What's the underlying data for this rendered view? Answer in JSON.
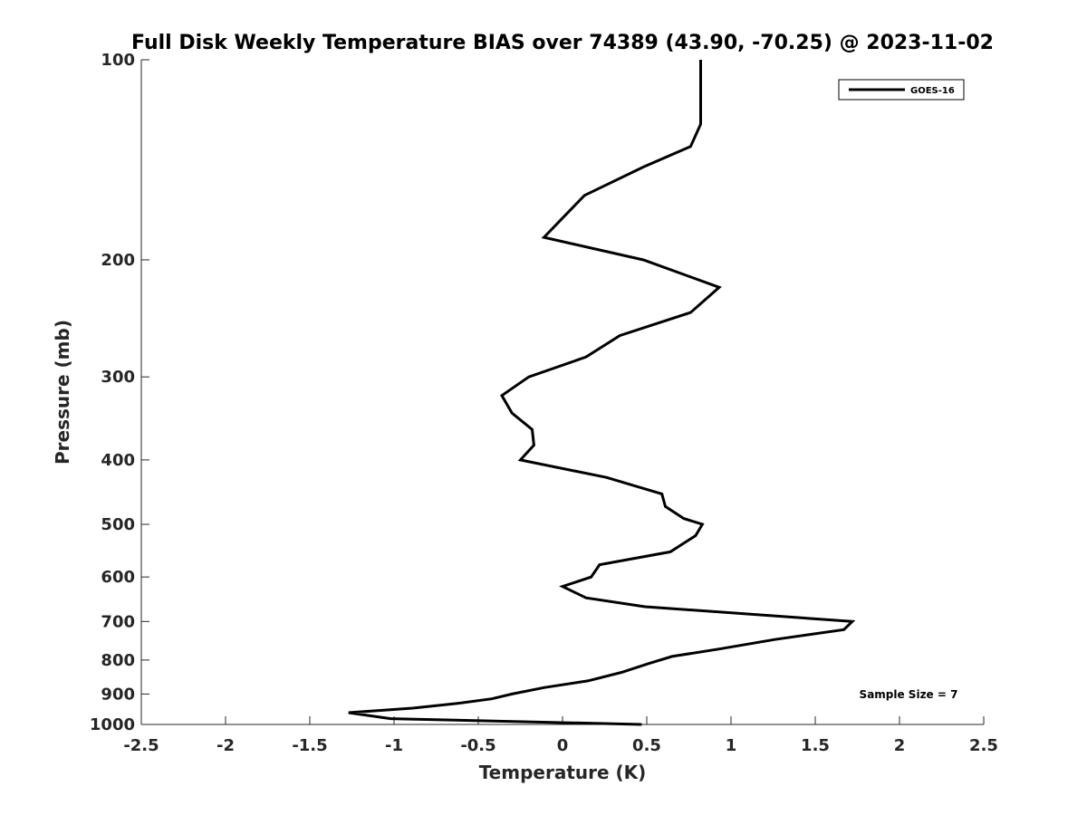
{
  "chart_data": {
    "type": "line",
    "title": "Full Disk Weekly Temperature BIAS over 74389 (43.90, -70.25) @ 2023-11-02",
    "xlabel": "Temperature (K)",
    "ylabel": "Pressure (mb)",
    "xlim": [
      -2.5,
      2.5
    ],
    "ylim": [
      100,
      1000
    ],
    "y_scale": "log",
    "y_reversed": true,
    "grid": false,
    "x_ticks": [
      -2.5,
      -2,
      -1.5,
      -1,
      -0.5,
      0,
      0.5,
      1,
      1.5,
      2,
      2.5
    ],
    "x_tick_labels": [
      "-2.5",
      "-2",
      "-1.5",
      "-1",
      "-0.5",
      "0",
      "0.5",
      "1",
      "1.5",
      "2",
      "2.5"
    ],
    "y_ticks": [
      100,
      200,
      300,
      400,
      500,
      600,
      700,
      800,
      900,
      1000
    ],
    "y_tick_labels": [
      "100",
      "200",
      "300",
      "400",
      "500",
      "600",
      "700",
      "800",
      "900",
      "1000"
    ],
    "legend_position": "top-right",
    "series": [
      {
        "name": "GOES-16",
        "color": "#000000",
        "points": [
          {
            "x": 0.82,
            "y": 100
          },
          {
            "x": 0.82,
            "y": 125
          },
          {
            "x": 0.76,
            "y": 135
          },
          {
            "x": 0.48,
            "y": 145
          },
          {
            "x": 0.13,
            "y": 160
          },
          {
            "x": -0.11,
            "y": 185
          },
          {
            "x": 0.48,
            "y": 200
          },
          {
            "x": 0.93,
            "y": 220
          },
          {
            "x": 0.76,
            "y": 240
          },
          {
            "x": 0.34,
            "y": 260
          },
          {
            "x": 0.14,
            "y": 280
          },
          {
            "x": -0.2,
            "y": 300
          },
          {
            "x": -0.36,
            "y": 320
          },
          {
            "x": -0.3,
            "y": 340
          },
          {
            "x": -0.18,
            "y": 360
          },
          {
            "x": -0.17,
            "y": 380
          },
          {
            "x": -0.25,
            "y": 400
          },
          {
            "x": 0.26,
            "y": 425
          },
          {
            "x": 0.59,
            "y": 450
          },
          {
            "x": 0.61,
            "y": 470
          },
          {
            "x": 0.72,
            "y": 490
          },
          {
            "x": 0.83,
            "y": 500
          },
          {
            "x": 0.79,
            "y": 520
          },
          {
            "x": 0.64,
            "y": 550
          },
          {
            "x": 0.22,
            "y": 575
          },
          {
            "x": 0.17,
            "y": 600
          },
          {
            "x": 0.0,
            "y": 620
          },
          {
            "x": 0.14,
            "y": 645
          },
          {
            "x": 0.49,
            "y": 665
          },
          {
            "x": 1.72,
            "y": 700
          },
          {
            "x": 1.67,
            "y": 720
          },
          {
            "x": 1.26,
            "y": 745
          },
          {
            "x": 0.93,
            "y": 770
          },
          {
            "x": 0.65,
            "y": 790
          },
          {
            "x": 0.51,
            "y": 810
          },
          {
            "x": 0.35,
            "y": 835
          },
          {
            "x": 0.15,
            "y": 860
          },
          {
            "x": -0.11,
            "y": 880
          },
          {
            "x": -0.3,
            "y": 900
          },
          {
            "x": -0.42,
            "y": 915
          },
          {
            "x": -0.63,
            "y": 930
          },
          {
            "x": -0.89,
            "y": 945
          },
          {
            "x": -1.27,
            "y": 960
          },
          {
            "x": -1.02,
            "y": 980
          },
          {
            "x": 0.47,
            "y": 1000
          }
        ]
      }
    ],
    "annotations": [
      {
        "text": "Sample Size = 7",
        "position": "bottom-right"
      }
    ]
  }
}
